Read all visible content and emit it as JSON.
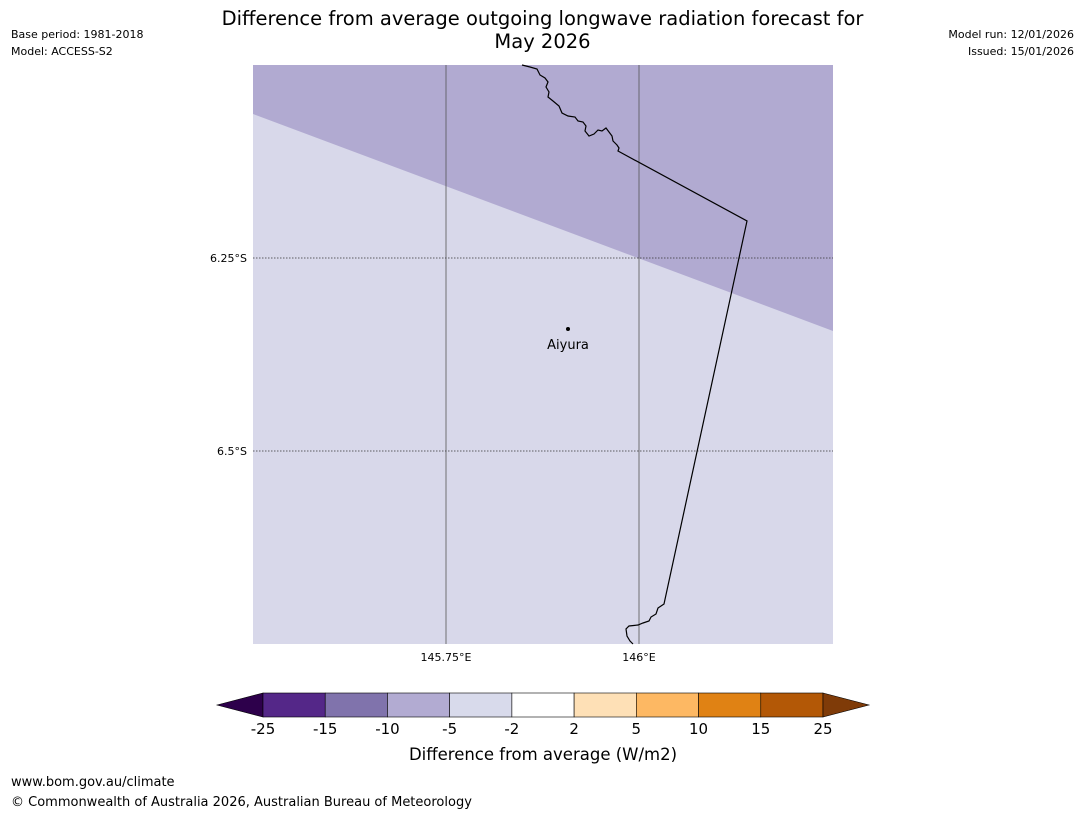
{
  "title": {
    "line1": "Difference from average outgoing longwave radiation forecast for",
    "line2": "May 2026"
  },
  "meta_left": [
    "Base period: 1981-2018",
    "Model: ACCESS-S2"
  ],
  "meta_right": [
    "Model run: 12/01/2026",
    "Issued: 15/01/2026"
  ],
  "map": {
    "lon_labels": [
      "145.75°E",
      "146°E"
    ],
    "lat_labels": [
      "6.25°S",
      "6.5°S"
    ],
    "place": {
      "name": "Aiyura"
    },
    "fill_colors": {
      "upper_band": "#b1aad1",
      "lower_band": "#d8d8ea"
    },
    "gridline_color": "#555555"
  },
  "colorbar": {
    "label": "Difference from average (W/m2)",
    "ticks": [
      "-25",
      "-15",
      "-10",
      "-5",
      "-2",
      "2",
      "5",
      "10",
      "15",
      "25"
    ],
    "under_color": "#2d004b",
    "over_color": "#7f3b08",
    "segments": [
      {
        "from": "-25",
        "to": "-15",
        "color": "#542788"
      },
      {
        "from": "-15",
        "to": "-10",
        "color": "#8073ac"
      },
      {
        "from": "-10",
        "to": "-5",
        "color": "#b2abd2"
      },
      {
        "from": "-5",
        "to": "-2",
        "color": "#d8daeb"
      },
      {
        "from": "-2",
        "to": "2",
        "color": "#ffffff"
      },
      {
        "from": "2",
        "to": "5",
        "color": "#fee0b6"
      },
      {
        "from": "5",
        "to": "10",
        "color": "#fdb863"
      },
      {
        "from": "10",
        "to": "15",
        "color": "#e08214"
      },
      {
        "from": "15",
        "to": "25",
        "color": "#b35806"
      }
    ]
  },
  "footer": {
    "url": "www.bom.gov.au/climate",
    "copyright": "© Commonwealth of Australia 2026, Australian Bureau of Meteorology"
  }
}
